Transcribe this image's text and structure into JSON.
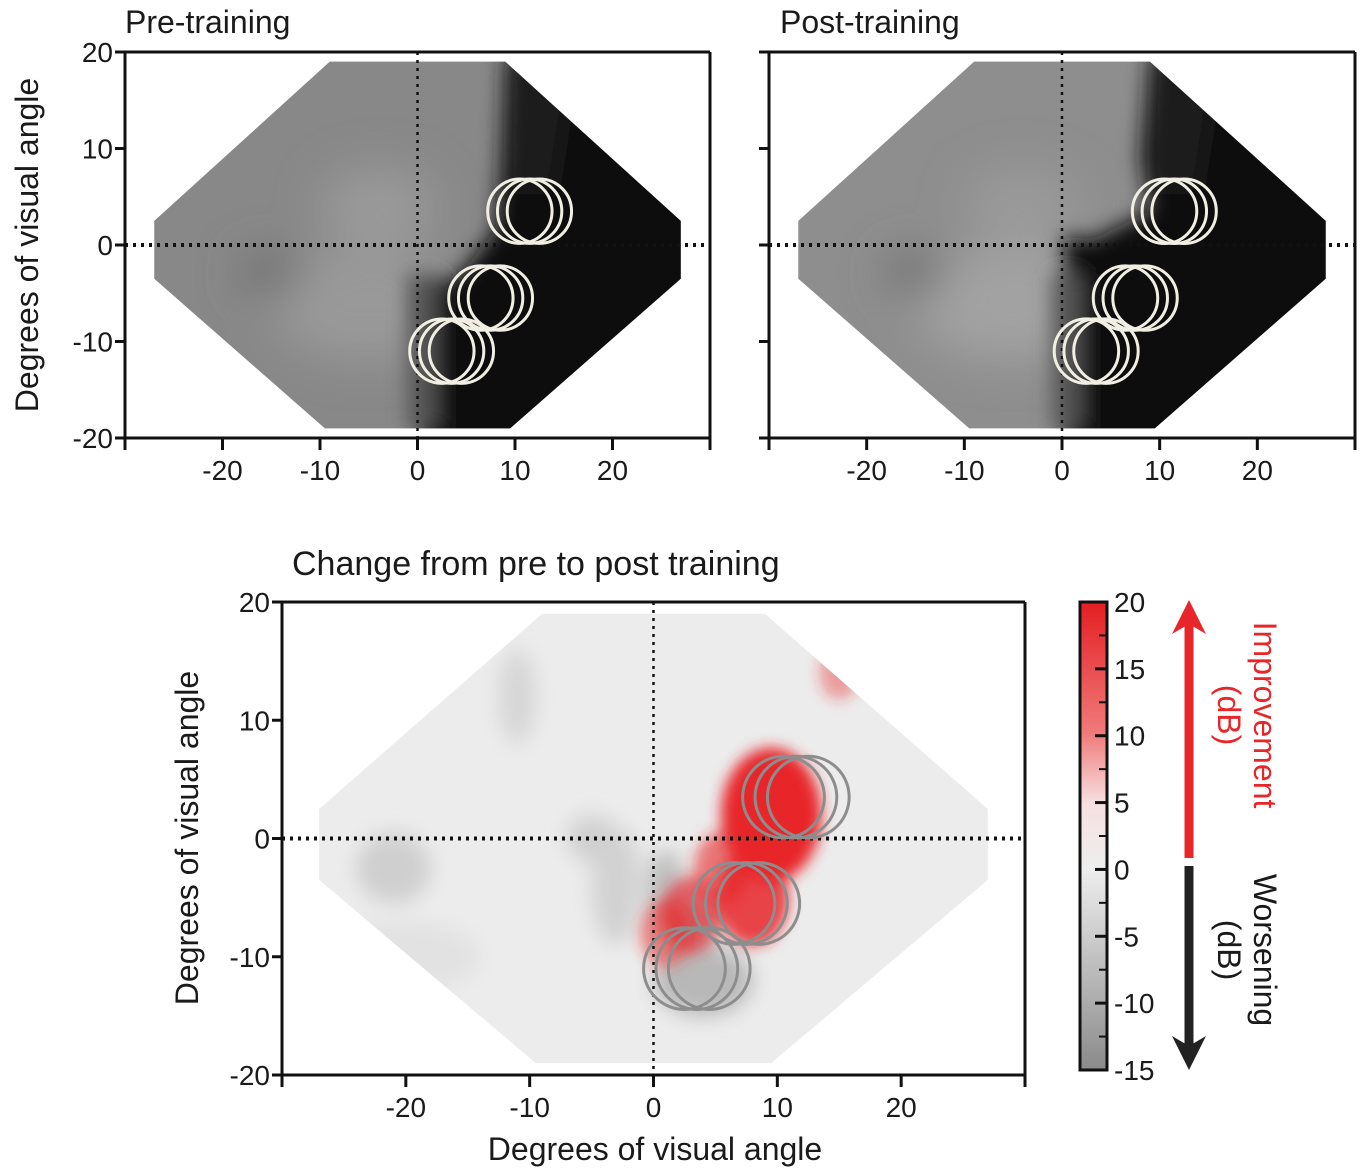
{
  "chart_data": [
    {
      "type": "heatmap",
      "title": "Pre-training",
      "xlabel": "",
      "ylabel": "Degrees of visual angle",
      "xlim": [
        -30,
        30
      ],
      "ylim": [
        -20,
        20
      ],
      "xticks": [
        -20,
        -10,
        0,
        10,
        20
      ],
      "yticks": [
        20,
        10,
        0,
        -10,
        -20
      ],
      "grid": false,
      "colormap": "grayscale sensitivity (dark = low)",
      "dark_region": "right hemifield, x > 0 and y < 3 (deficit); partially x > 9 for y > 3",
      "stimulus_circles": [
        {
          "x": 10.5,
          "y": 3.5
        },
        {
          "x": 11.5,
          "y": 3.5
        },
        {
          "x": 12.5,
          "y": 3.5
        },
        {
          "x": 6.5,
          "y": -5.5
        },
        {
          "x": 7.5,
          "y": -5.5
        },
        {
          "x": 8.5,
          "y": -5.5
        },
        {
          "x": 2.5,
          "y": -11
        },
        {
          "x": 3.5,
          "y": -11
        },
        {
          "x": 4.5,
          "y": -11
        }
      ]
    },
    {
      "type": "heatmap",
      "title": "Post-training",
      "xlabel": "",
      "ylabel": "",
      "xlim": [
        -30,
        30
      ],
      "ylim": [
        -20,
        20
      ],
      "xticks": [
        -20,
        -10,
        0,
        10,
        20
      ],
      "yticks": [],
      "grid": false,
      "colormap": "grayscale sensitivity (dark = low)",
      "stimulus_circles": [
        {
          "x": 10.5,
          "y": 3.5
        },
        {
          "x": 11.5,
          "y": 3.5
        },
        {
          "x": 12.5,
          "y": 3.5
        },
        {
          "x": 6.5,
          "y": -5.5
        },
        {
          "x": 7.5,
          "y": -5.5
        },
        {
          "x": 8.5,
          "y": -5.5
        },
        {
          "x": 2.5,
          "y": -11
        },
        {
          "x": 3.5,
          "y": -11
        },
        {
          "x": 4.5,
          "y": -11
        }
      ]
    },
    {
      "type": "heatmap",
      "title": "Change from pre to post training",
      "xlabel": "Degrees of visual angle",
      "ylabel": "Degrees of visual angle",
      "xlim": [
        -30,
        30
      ],
      "ylim": [
        -20,
        20
      ],
      "xticks": [
        -20,
        -10,
        0,
        10,
        20
      ],
      "yticks": [
        20,
        10,
        0,
        -10,
        -20
      ],
      "grid": false,
      "colorbar": {
        "ticks": [
          20,
          15,
          10,
          5,
          0,
          -5,
          -10,
          -15
        ],
        "range": [
          -15,
          20
        ],
        "positive_label": [
          "Improvement",
          "(dB)"
        ],
        "negative_label": [
          "Worsening",
          "(dB)"
        ],
        "positive_color": "#e8262a",
        "negative_color": "#222222"
      },
      "improvement_hotspots": [
        {
          "x": 9.5,
          "y": 2,
          "dB": 20
        },
        {
          "x": 8,
          "y": -5,
          "dB": 12
        },
        {
          "x": 3,
          "y": -6.5,
          "dB": 8
        },
        {
          "x": 1,
          "y": -8,
          "dB": 6
        },
        {
          "x": 5.5,
          "y": -2.5,
          "dB": 7
        },
        {
          "x": 15,
          "y": 14,
          "dB": 3
        }
      ],
      "stimulus_circles": [
        {
          "x": 10.5,
          "y": 3.5
        },
        {
          "x": 11.5,
          "y": 3.5
        },
        {
          "x": 12.5,
          "y": 3.5
        },
        {
          "x": 6.5,
          "y": -5.5
        },
        {
          "x": 7.5,
          "y": -5.5
        },
        {
          "x": 8.5,
          "y": -5.5
        },
        {
          "x": 2.5,
          "y": -11
        },
        {
          "x": 3.5,
          "y": -11
        },
        {
          "x": 4.5,
          "y": -11
        }
      ]
    }
  ]
}
